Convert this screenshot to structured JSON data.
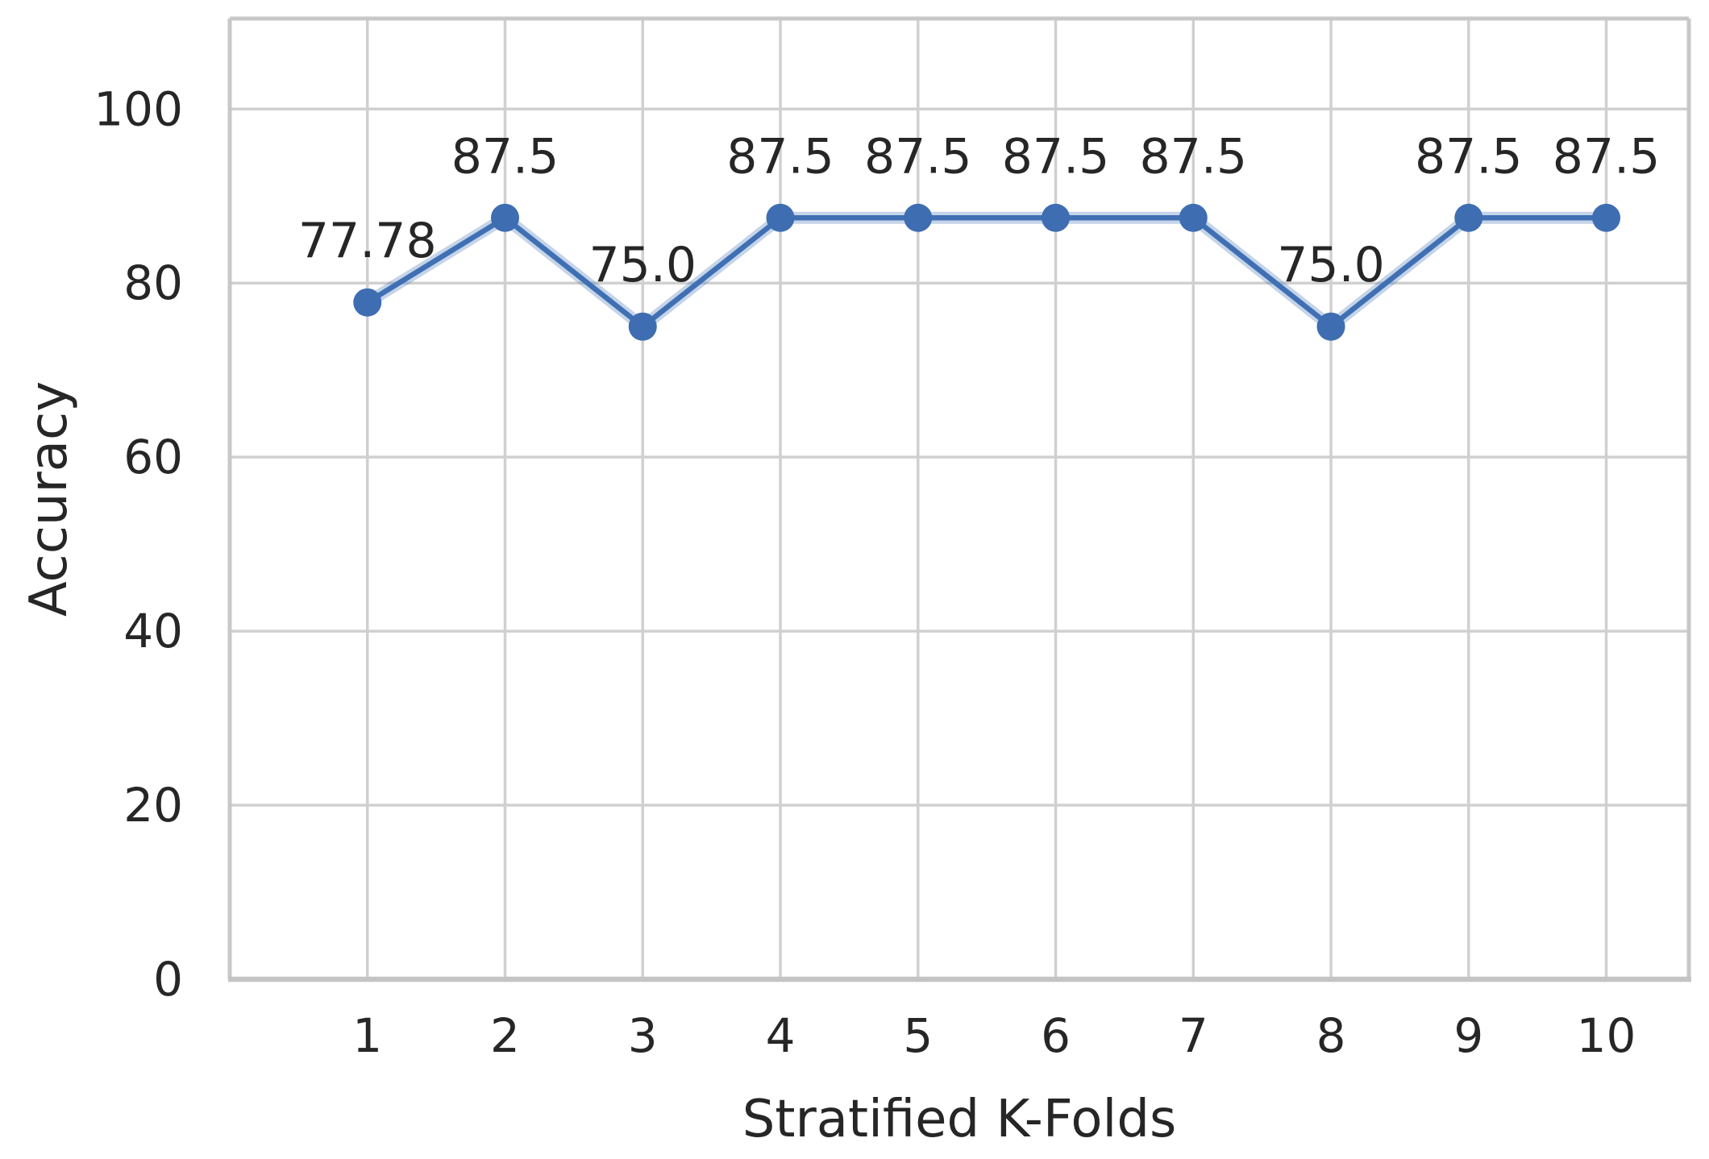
{
  "figure": {
    "description": "Line chart showing classifier accuracy for each of ten stratified k-folds"
  },
  "chart_data": {
    "type": "line",
    "title": "",
    "xlabel": "Stratified K-Folds",
    "ylabel": "Accuracy",
    "x": [
      1,
      2,
      3,
      4,
      5,
      6,
      7,
      8,
      9,
      10
    ],
    "series": [
      {
        "name": "Accuracy",
        "values": [
          77.78,
          87.5,
          75.0,
          87.5,
          87.5,
          87.5,
          87.5,
          75.0,
          87.5,
          87.5
        ]
      }
    ],
    "point_labels": [
      "77.78",
      "87.5",
      "75.0",
      "87.5",
      "87.5",
      "87.5",
      "87.5",
      "75.0",
      "87.5",
      "87.5"
    ],
    "xticks": [
      "1",
      "2",
      "3",
      "4",
      "5",
      "6",
      "7",
      "8",
      "9",
      "10"
    ],
    "yticks": [
      0,
      20,
      40,
      60,
      80,
      100
    ],
    "xlim": [
      0,
      10.6
    ],
    "ylim": [
      0,
      110.4
    ],
    "grid": true,
    "legend_position": "none",
    "marker": "circle",
    "colors": {
      "line": "#4070B4",
      "line_halo": "#4070B4",
      "marker": "#3E6DB2",
      "grid": "#D0D0D0",
      "spine": "#C8C8C8",
      "bottom_spine": "#C4C4C4",
      "text": "#262626"
    }
  }
}
